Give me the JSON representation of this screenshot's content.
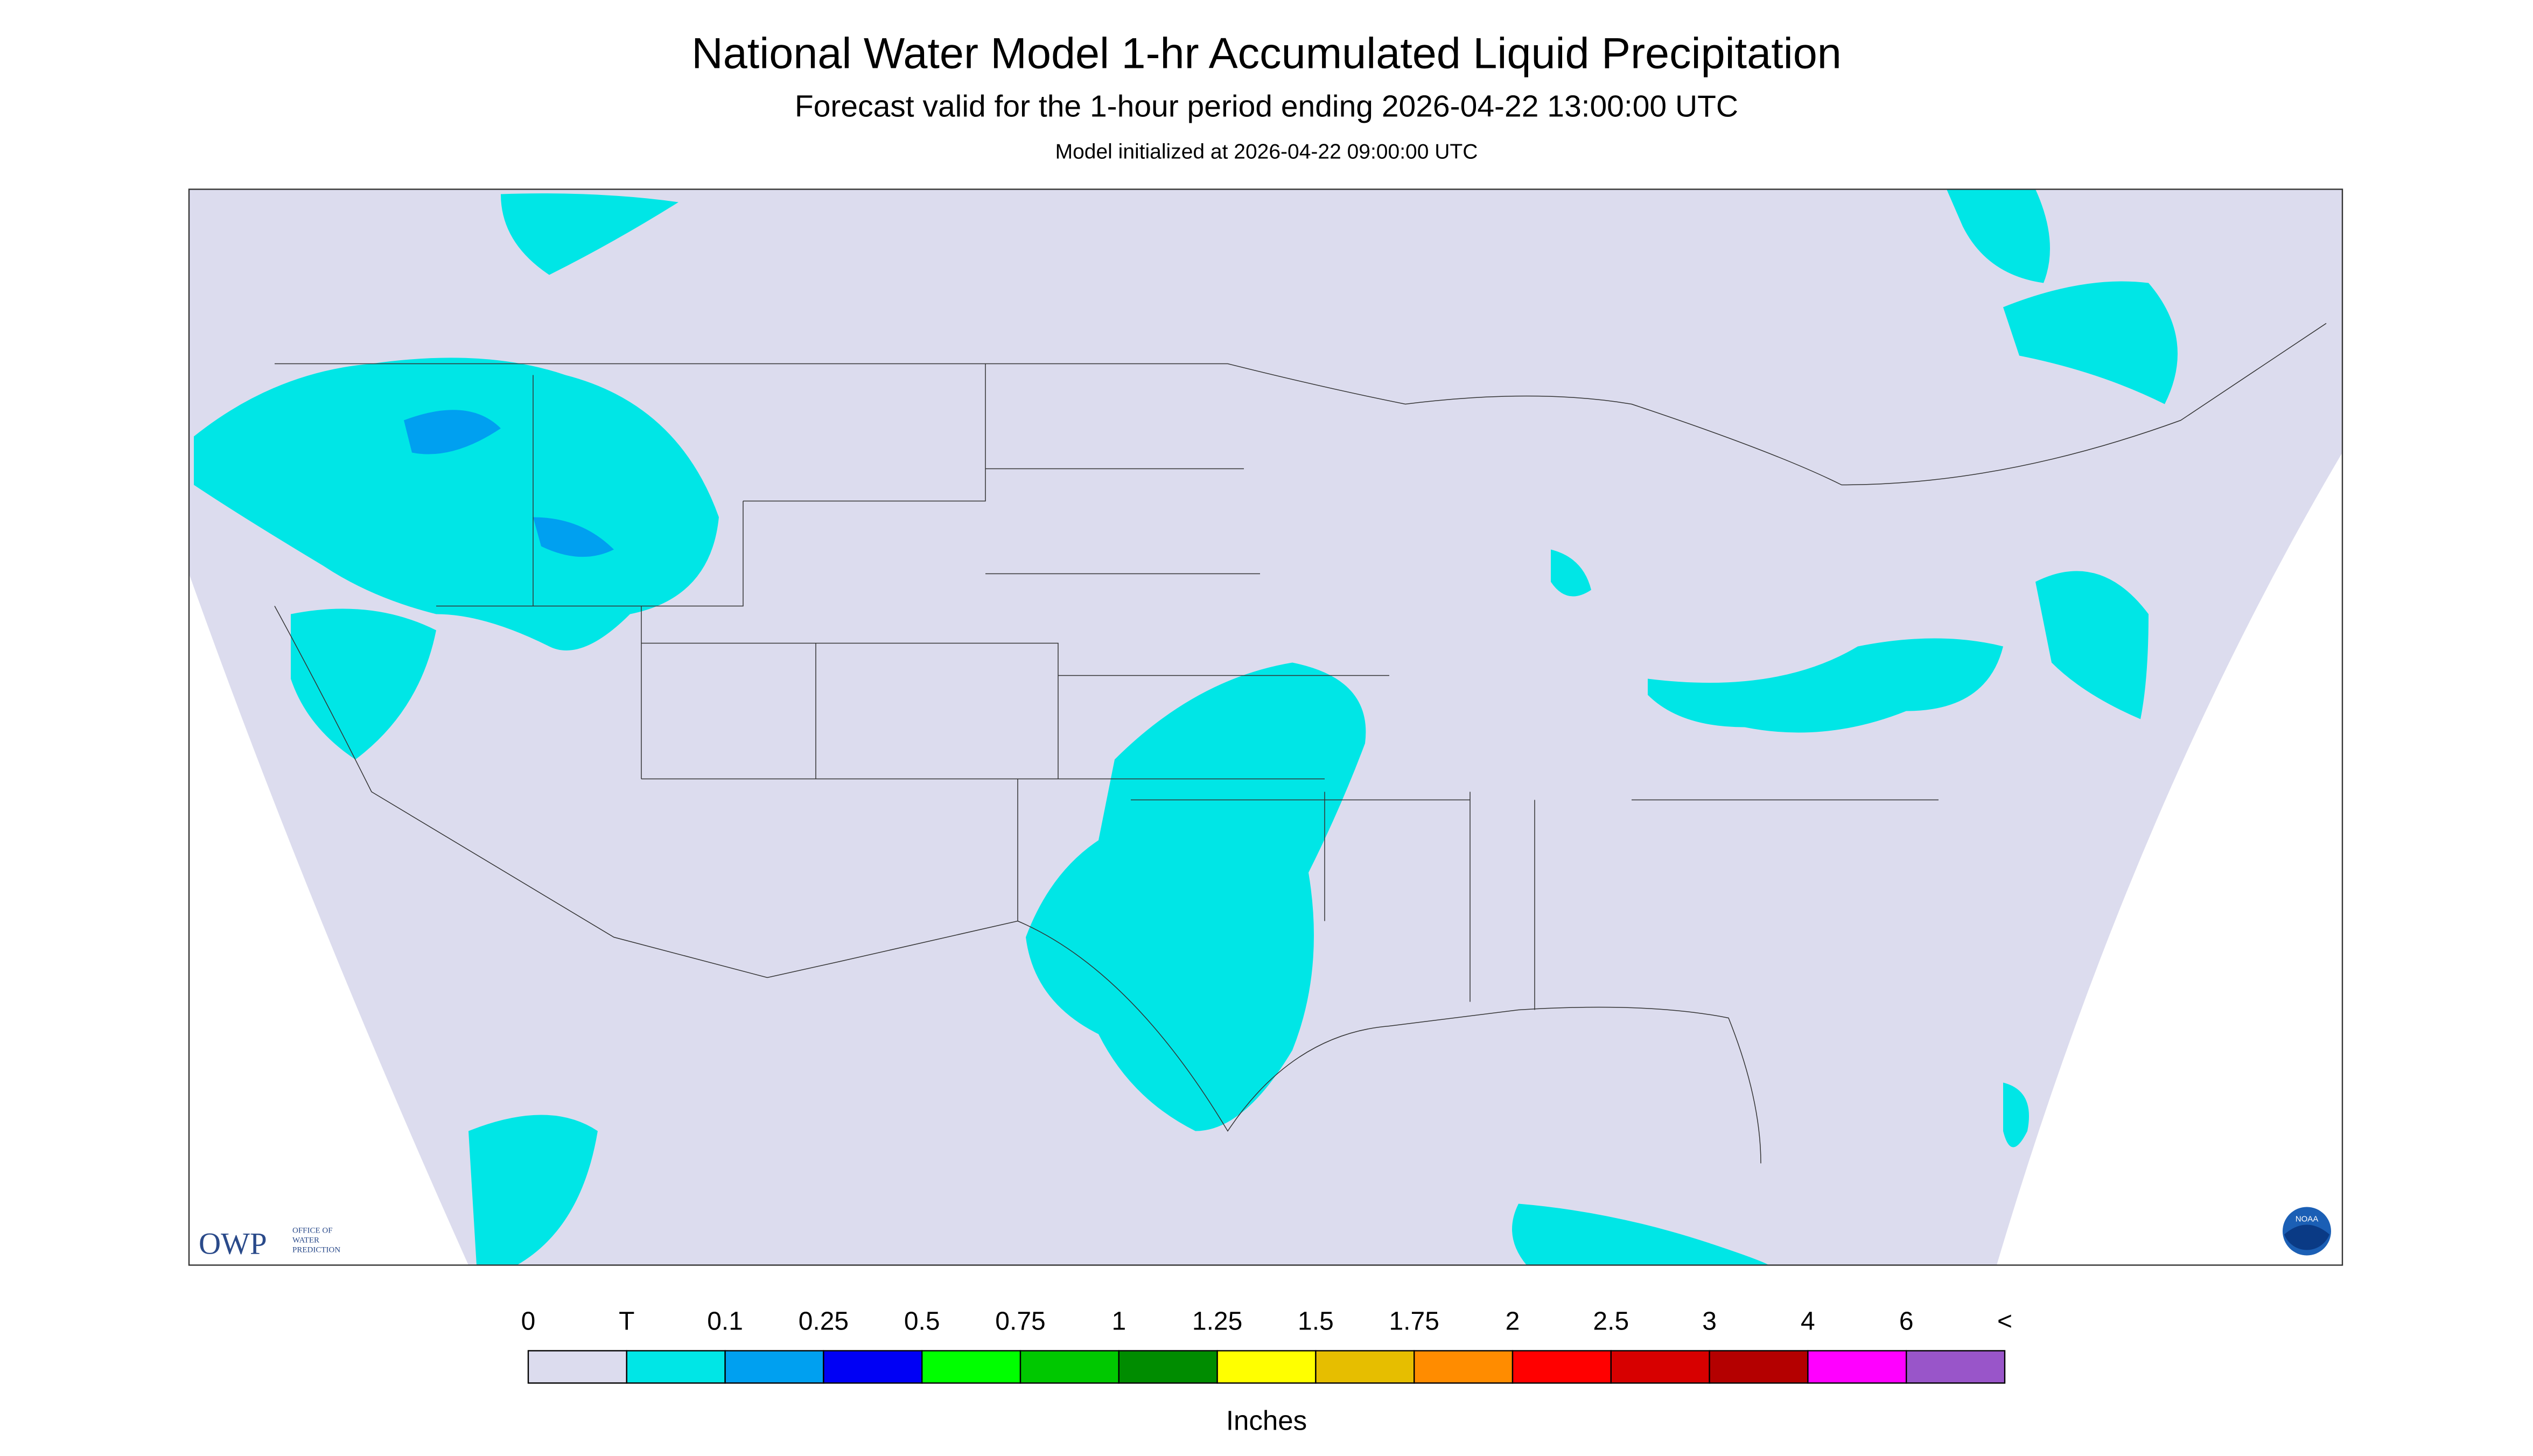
{
  "header": {
    "title": "National Water Model 1-hr Accumulated Liquid Precipitation",
    "subtitle": "Forecast valid for the 1-hour period ending 2026-04-22 13:00:00 UTC",
    "init": "Model initialized at 2026-04-22 09:00:00 UTC"
  },
  "logos": {
    "owp": {
      "name": "OWP",
      "lines": [
        "OFFICE OF",
        "WATER",
        "PREDICTION"
      ]
    },
    "noaa": "NOAA"
  },
  "legend": {
    "labels": [
      "0",
      "T",
      "0.1",
      "0.25",
      "0.5",
      "0.75",
      "1",
      "1.25",
      "1.5",
      "1.75",
      "2",
      "2.5",
      "3",
      "4",
      "6",
      "<"
    ],
    "colors": [
      "#dcdcee",
      "#00e6e6",
      "#00a0f0",
      "#0000f5",
      "#00ff00",
      "#00c800",
      "#008c00",
      "#ffff00",
      "#e6be00",
      "#ff8c00",
      "#ff0000",
      "#d70000",
      "#b40000",
      "#ff00ff",
      "#9955c9"
    ],
    "unit": "Inches"
  }
}
